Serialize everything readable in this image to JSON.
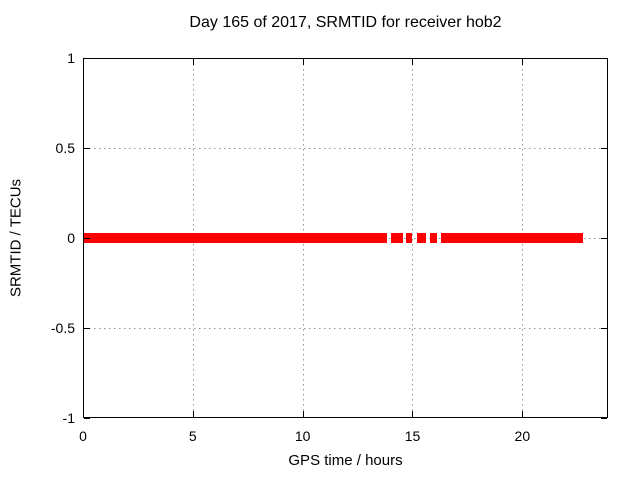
{
  "figure": {
    "background_color": "#ffffff",
    "border_color": "#000000",
    "grid_color": "#959595",
    "accent_color": "#ff0000"
  },
  "chart_data": {
    "type": "scatter",
    "title": "Day 165 of 2017, SRMTID for receiver hob2",
    "xlabel": "GPS time / hours",
    "ylabel": "SRMTID / TECUs",
    "xlim": [
      0,
      23.9
    ],
    "ylim": [
      -1,
      1
    ],
    "xtick_values": [
      0,
      5,
      10,
      15,
      20
    ],
    "xtick_labels": [
      "0",
      "5",
      "10",
      "15",
      "20"
    ],
    "ytick_values": [
      -1,
      -0.5,
      0,
      0.5,
      1
    ],
    "ytick_labels": [
      "-1",
      "-0.5",
      "0",
      "0.5",
      "1"
    ],
    "grid": true,
    "grid_style": "dotted",
    "legend": "none",
    "series": [
      {
        "name": "SRMTID",
        "color": "#ff0000",
        "marker": "point",
        "description": "Dense band of points at y = 0 (|y| < 0.03 TECUs) forming a thick horizontal red band with short dropout gaps between about 13.9 and 16.3 hours",
        "band_center_y": 0,
        "band_halfwidth_y": 0.03,
        "x_segments": [
          [
            0.05,
            13.85
          ],
          [
            14.0,
            14.55
          ],
          [
            14.7,
            15.0
          ],
          [
            15.2,
            15.6
          ],
          [
            15.8,
            16.1
          ],
          [
            16.3,
            22.75
          ]
        ]
      }
    ]
  }
}
